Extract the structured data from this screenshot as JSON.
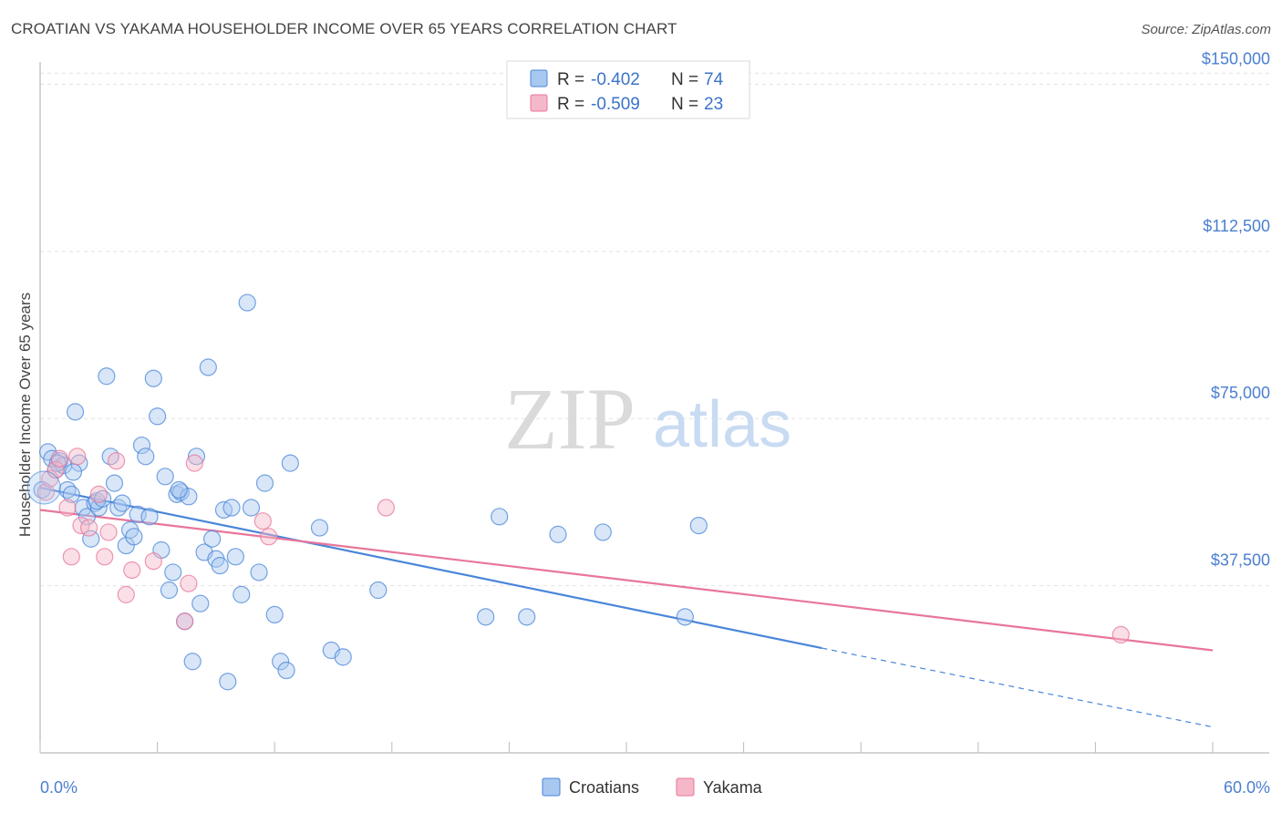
{
  "header": {
    "title": "CROATIAN VS YAKAMA HOUSEHOLDER INCOME OVER 65 YEARS CORRELATION CHART",
    "source": "Source: ZipAtlas.com"
  },
  "watermark": {
    "zip": "ZIP",
    "atlas": "atlas"
  },
  "legend": {
    "r_label": "R =",
    "n_label": "N =",
    "rows": [
      {
        "r_value": "-0.402",
        "n_value": "74",
        "color": "#a8c8f0"
      },
      {
        "r_value": "-0.509",
        "n_value": "23",
        "color": "#f5b8c8"
      }
    ]
  },
  "chart_data": {
    "type": "scatter",
    "title": "CROATIAN VS YAKAMA HOUSEHOLDER INCOME OVER 65 YEARS CORRELATION CHART",
    "xlabel": "",
    "ylabel": "Householder Income Over 65 years",
    "xlim": [
      0,
      60
    ],
    "ylim": [
      0,
      155000
    ],
    "x_tick_labels": [
      "0.0%",
      "60.0%"
    ],
    "y_ticks": [
      37500,
      75000,
      112500,
      150000
    ],
    "y_tick_labels": [
      "$37,500",
      "$75,000",
      "$112,500",
      "$150,000"
    ],
    "grid": true,
    "legend_position": "top-center",
    "series": [
      {
        "name": "Croatians",
        "color": "#4a86d8",
        "fill": "#a8c8f0",
        "trend": {
          "x": [
            0,
            40
          ],
          "y": [
            59500,
            23500
          ],
          "dashed_x": [
            40,
            60
          ],
          "dashed_y": [
            23500,
            5800
          ]
        },
        "points": [
          [
            0.1,
            59000
          ],
          [
            0.4,
            67500
          ],
          [
            0.6,
            66000
          ],
          [
            0.8,
            63500
          ],
          [
            1.0,
            65500
          ],
          [
            1.2,
            64500
          ],
          [
            1.4,
            59000
          ],
          [
            1.6,
            58000
          ],
          [
            1.8,
            76500
          ],
          [
            2.0,
            65000
          ],
          [
            2.2,
            55000
          ],
          [
            2.4,
            53000
          ],
          [
            2.6,
            48000
          ],
          [
            2.8,
            56000
          ],
          [
            3.0,
            55000
          ],
          [
            3.4,
            84500
          ],
          [
            3.6,
            66500
          ],
          [
            3.8,
            60500
          ],
          [
            4.0,
            55000
          ],
          [
            4.2,
            56000
          ],
          [
            4.4,
            46500
          ],
          [
            4.6,
            50000
          ],
          [
            4.8,
            48500
          ],
          [
            5.0,
            53500
          ],
          [
            5.2,
            69000
          ],
          [
            5.4,
            66500
          ],
          [
            5.6,
            53000
          ],
          [
            5.8,
            84000
          ],
          [
            6.0,
            75500
          ],
          [
            6.2,
            45500
          ],
          [
            6.4,
            62000
          ],
          [
            6.6,
            36500
          ],
          [
            6.8,
            40500
          ],
          [
            7.0,
            58000
          ],
          [
            7.2,
            58500
          ],
          [
            7.4,
            29500
          ],
          [
            7.6,
            57500
          ],
          [
            7.8,
            20500
          ],
          [
            8.0,
            66500
          ],
          [
            8.2,
            33500
          ],
          [
            8.4,
            45000
          ],
          [
            8.6,
            86500
          ],
          [
            8.8,
            48000
          ],
          [
            9.0,
            43500
          ],
          [
            9.2,
            42000
          ],
          [
            9.4,
            54500
          ],
          [
            9.6,
            16000
          ],
          [
            9.8,
            55000
          ],
          [
            10.0,
            44000
          ],
          [
            10.3,
            35500
          ],
          [
            10.6,
            101000
          ],
          [
            10.8,
            55000
          ],
          [
            11.2,
            40500
          ],
          [
            11.5,
            60500
          ],
          [
            12.0,
            31000
          ],
          [
            12.3,
            20500
          ],
          [
            12.6,
            18500
          ],
          [
            12.8,
            65000
          ],
          [
            14.3,
            50500
          ],
          [
            14.9,
            23000
          ],
          [
            15.5,
            21500
          ],
          [
            17.3,
            36500
          ],
          [
            22.8,
            30500
          ],
          [
            23.5,
            53000
          ],
          [
            24.9,
            30500
          ],
          [
            26.5,
            49000
          ],
          [
            28.8,
            49500
          ],
          [
            33.7,
            51000
          ],
          [
            33.0,
            30500
          ],
          [
            2.9,
            56500
          ],
          [
            3.2,
            57000
          ],
          [
            7.1,
            59000
          ],
          [
            1.7,
            63000
          ],
          [
            0.9,
            65000
          ]
        ]
      },
      {
        "name": "Yakama",
        "color": "#e8769a",
        "fill": "#f5b8c8",
        "trend": {
          "x": [
            0,
            60
          ],
          "y": [
            54500,
            23000
          ]
        },
        "points": [
          [
            0.3,
            58500
          ],
          [
            0.5,
            61500
          ],
          [
            0.8,
            63500
          ],
          [
            1.0,
            66000
          ],
          [
            1.4,
            55000
          ],
          [
            1.6,
            44000
          ],
          [
            1.9,
            66500
          ],
          [
            2.1,
            51000
          ],
          [
            2.5,
            50500
          ],
          [
            3.0,
            58000
          ],
          [
            3.3,
            44000
          ],
          [
            3.5,
            49500
          ],
          [
            3.9,
            65500
          ],
          [
            4.4,
            35500
          ],
          [
            4.7,
            41000
          ],
          [
            5.8,
            43000
          ],
          [
            7.4,
            29500
          ],
          [
            7.6,
            38000
          ],
          [
            7.9,
            65000
          ],
          [
            11.4,
            52000
          ],
          [
            11.7,
            48500
          ],
          [
            17.7,
            55000
          ],
          [
            55.3,
            26500
          ]
        ]
      }
    ]
  },
  "bottom_legend": {
    "items": [
      {
        "label": "Croatians",
        "color": "#a8c8f0"
      },
      {
        "label": "Yakama",
        "color": "#f5b8c8"
      }
    ]
  }
}
